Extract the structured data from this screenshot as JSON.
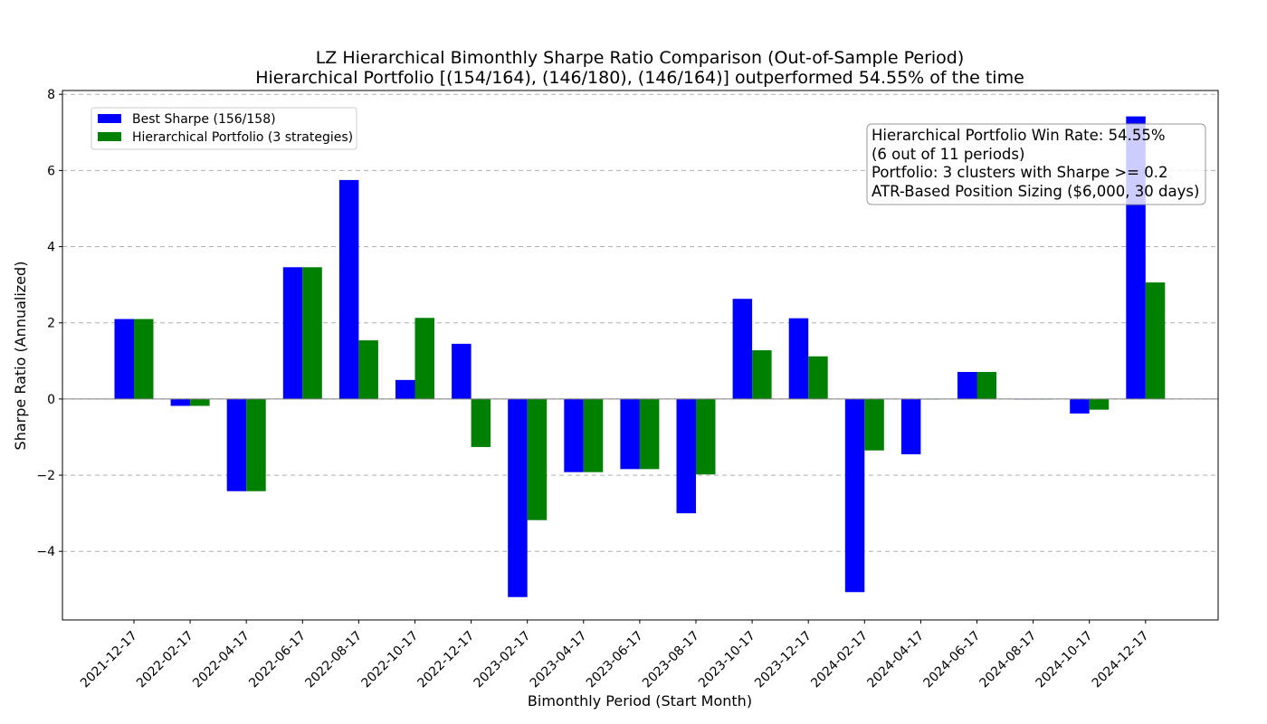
{
  "chart_data": {
    "type": "bar",
    "title": "LZ Hierarchical Bimonthly Sharpe Ratio Comparison (Out-of-Sample Period)",
    "subtitle": "Hierarchical Portfolio [(154/164), (146/180), (146/164)] outperformed 54.55% of the time",
    "xlabel": "Bimonthly Period (Start Month)",
    "ylabel": "Sharpe Ratio (Annualized)",
    "ylim": [
      -5.8,
      8.1
    ],
    "yticks": [
      -4,
      -2,
      0,
      2,
      4,
      6,
      8
    ],
    "ytick_labels": [
      "−4",
      "−2",
      "0",
      "2",
      "4",
      "6",
      "8"
    ],
    "grid": true,
    "legend_position": "top-left",
    "categories": [
      "2021-12-17",
      "2022-02-17",
      "2022-04-17",
      "2022-06-17",
      "2022-08-17",
      "2022-10-17",
      "2022-12-17",
      "2023-02-17",
      "2023-04-17",
      "2023-06-17",
      "2023-08-17",
      "2023-10-17",
      "2023-12-17",
      "2024-02-17",
      "2024-04-17",
      "2024-06-17",
      "2024-08-17",
      "2024-10-17",
      "2024-12-17"
    ],
    "series": [
      {
        "name": "Best Sharpe (156/158)",
        "color": "#0000ff",
        "values": [
          2.1,
          -0.18,
          -2.42,
          3.46,
          5.75,
          0.5,
          1.45,
          -5.2,
          -1.92,
          -1.84,
          -3.0,
          2.63,
          2.12,
          -5.07,
          -1.45,
          0.71,
          0.0,
          -0.38,
          7.42
        ]
      },
      {
        "name": "Hierarchical Portfolio (3 strategies)",
        "color": "#008000",
        "values": [
          2.1,
          -0.18,
          -2.42,
          3.46,
          1.54,
          2.13,
          -1.26,
          -3.18,
          -1.92,
          -1.84,
          -1.98,
          1.28,
          1.12,
          -1.35,
          0.0,
          0.71,
          0.0,
          -0.28,
          3.06
        ]
      }
    ],
    "info_box": [
      "Hierarchical Portfolio Win Rate: 54.55%",
      "(6 out of 11 periods)",
      "Portfolio: 3 clusters with Sharpe >= 0.2",
      "ATR-Based Position Sizing ($6,000, 30 days)"
    ]
  }
}
